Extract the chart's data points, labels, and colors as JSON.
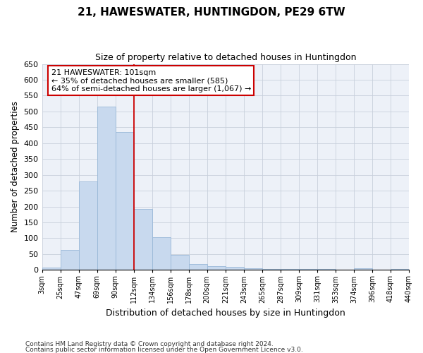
{
  "title": "21, HAWESWATER, HUNTINGDON, PE29 6TW",
  "subtitle": "Size of property relative to detached houses in Huntingdon",
  "xlabel": "Distribution of detached houses by size in Huntingdon",
  "ylabel": "Number of detached properties",
  "footnote1": "Contains HM Land Registry data © Crown copyright and database right 2024.",
  "footnote2": "Contains public sector information licensed under the Open Government Licence v3.0.",
  "annotation_line1": "21 HAWESWATER: 101sqm",
  "annotation_line2": "← 35% of detached houses are smaller (585)",
  "annotation_line3": "64% of semi-detached houses are larger (1,067) →",
  "bar_values": [
    8,
    63,
    280,
    515,
    435,
    192,
    103,
    47,
    18,
    12,
    9,
    5,
    3,
    3,
    2,
    2,
    0,
    5,
    0,
    2
  ],
  "categories": [
    "3sqm",
    "25sqm",
    "47sqm",
    "69sqm",
    "90sqm",
    "112sqm",
    "134sqm",
    "156sqm",
    "178sqm",
    "200sqm",
    "221sqm",
    "243sqm",
    "265sqm",
    "287sqm",
    "309sqm",
    "331sqm",
    "353sqm",
    "374sqm",
    "396sqm",
    "418sqm",
    "440sqm"
  ],
  "bar_color": "#c8d9ee",
  "bar_edge_color": "#9ab8d8",
  "grid_color": "#c8d0dc",
  "background_color": "#edf1f8",
  "red_line_x": 5,
  "annotation_box_color": "#ffffff",
  "annotation_box_edge": "#cc0000",
  "ylim": [
    0,
    650
  ],
  "yticks": [
    0,
    50,
    100,
    150,
    200,
    250,
    300,
    350,
    400,
    450,
    500,
    550,
    600,
    650
  ]
}
